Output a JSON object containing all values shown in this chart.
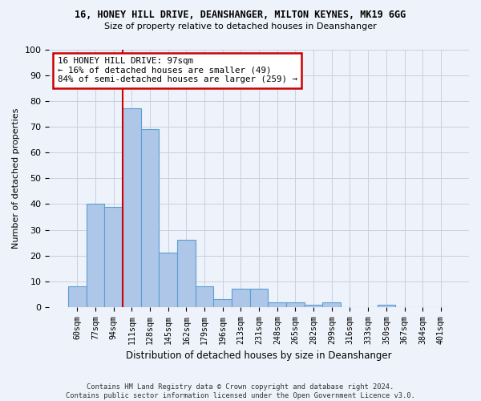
{
  "title1": "16, HONEY HILL DRIVE, DEANSHANGER, MILTON KEYNES, MK19 6GG",
  "title2": "Size of property relative to detached houses in Deanshanger",
  "xlabel": "Distribution of detached houses by size in Deanshanger",
  "ylabel": "Number of detached properties",
  "footnote": "Contains HM Land Registry data © Crown copyright and database right 2024.\nContains public sector information licensed under the Open Government Licence v3.0.",
  "categories": [
    "60sqm",
    "77sqm",
    "94sqm",
    "111sqm",
    "128sqm",
    "145sqm",
    "162sqm",
    "179sqm",
    "196sqm",
    "213sqm",
    "231sqm",
    "248sqm",
    "265sqm",
    "282sqm",
    "299sqm",
    "316sqm",
    "333sqm",
    "350sqm",
    "367sqm",
    "384sqm",
    "401sqm"
  ],
  "values": [
    8,
    40,
    39,
    77,
    69,
    21,
    26,
    8,
    3,
    7,
    7,
    2,
    2,
    1,
    2,
    0,
    0,
    1,
    0,
    0,
    0
  ],
  "bar_color": "#aec6e8",
  "bar_edge_color": "#5a9fd4",
  "annotation_text": "16 HONEY HILL DRIVE: 97sqm\n← 16% of detached houses are smaller (49)\n84% of semi-detached houses are larger (259) →",
  "annotation_box_color": "#ffffff",
  "annotation_box_edge_color": "#cc0000",
  "vline_color": "#cc0000",
  "ylim": [
    0,
    100
  ],
  "grid_color": "#c8d0e0",
  "bg_color": "#eef2fa"
}
